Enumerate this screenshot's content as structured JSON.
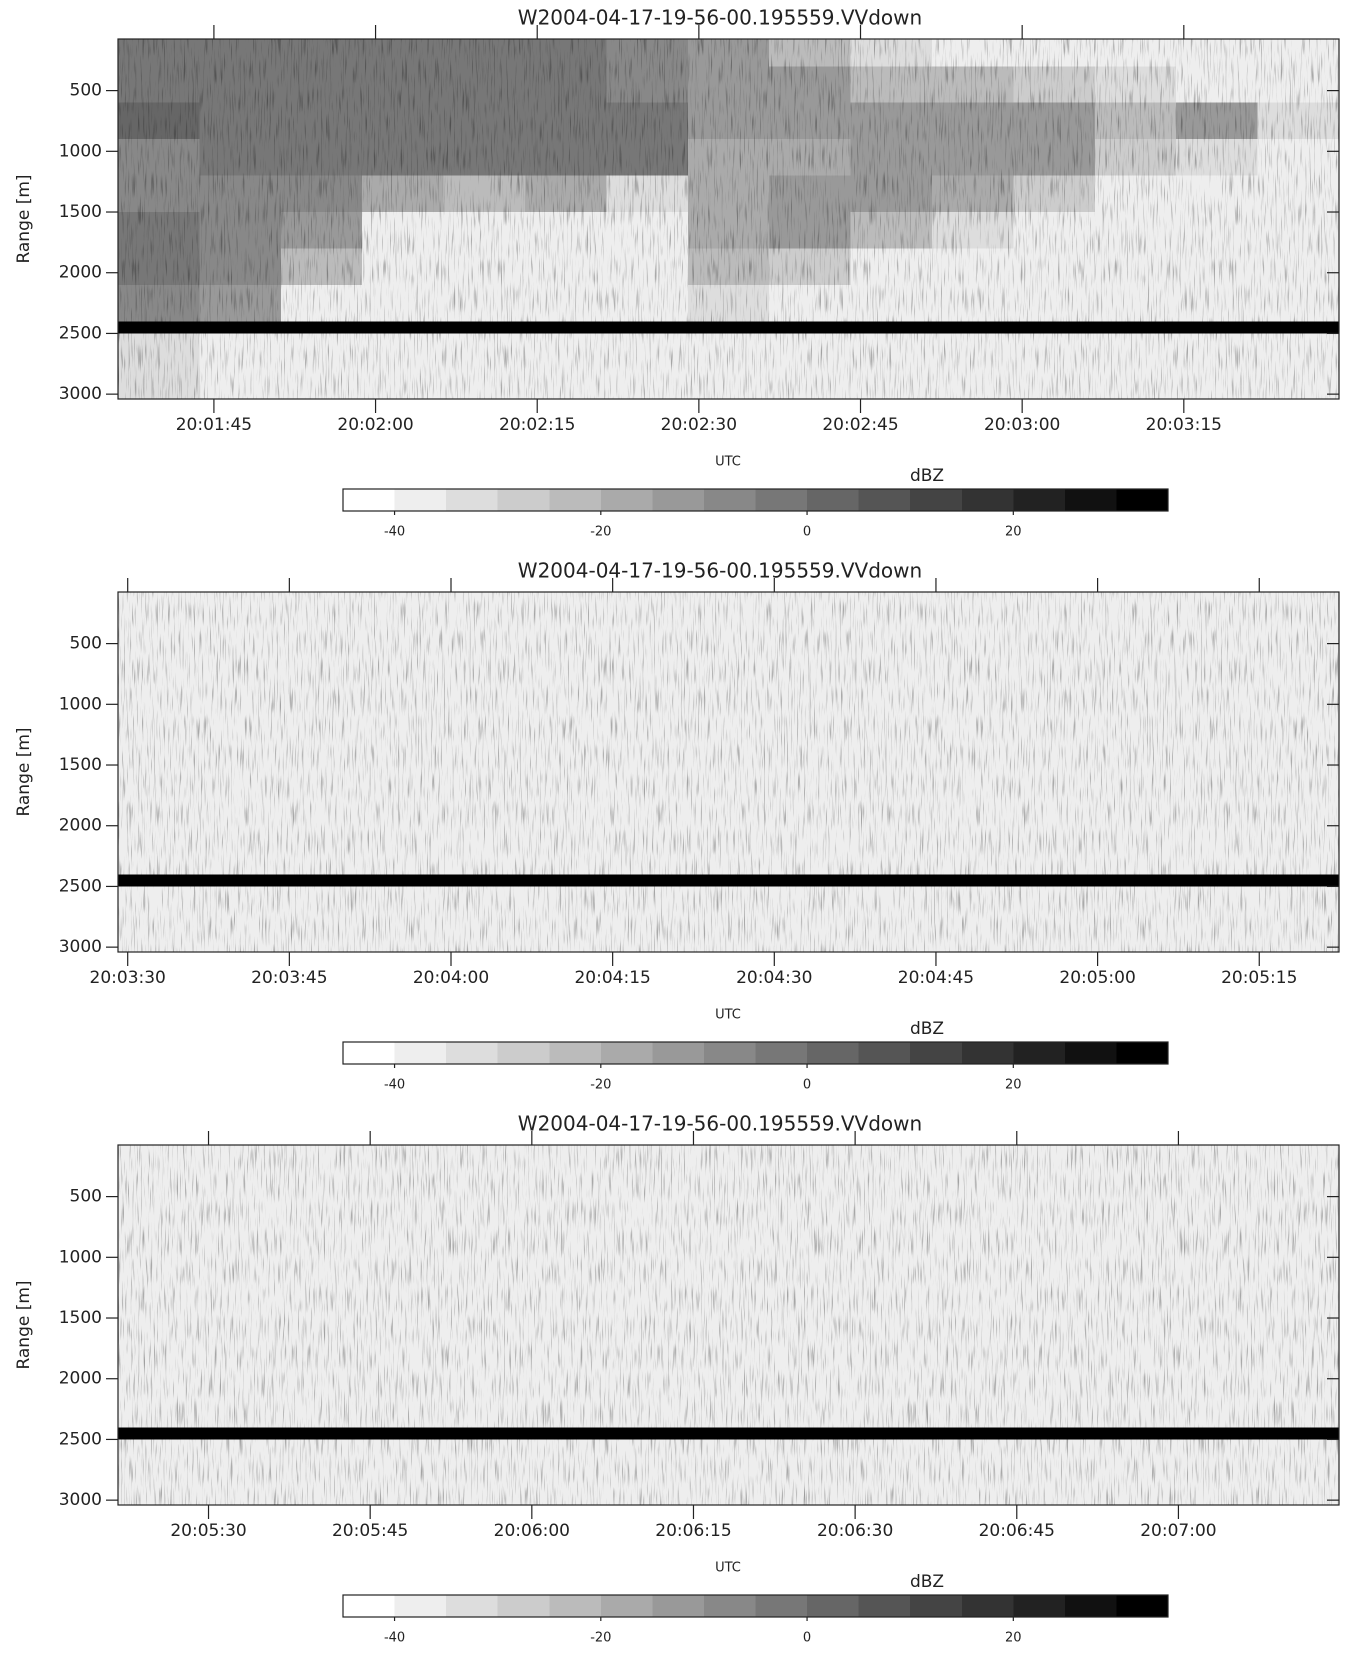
{
  "chart_data": [
    {
      "type": "heatmap",
      "title": "W2004-04-17-19-56-00.195559.VVdown",
      "xlabel": "UTC",
      "ylabel": "Range [m]",
      "xlim": [
        72096.1,
        72209.4
      ],
      "xticks": [
        {
          "value": 72105,
          "label": "20:01:45"
        },
        {
          "value": 72120,
          "label": "20:02:00"
        },
        {
          "value": 72135,
          "label": "20:02:15"
        },
        {
          "value": 72150,
          "label": "20:02:30"
        },
        {
          "value": 72165,
          "label": "20:02:45"
        },
        {
          "value": 72180,
          "label": "20:03:00"
        },
        {
          "value": 72195,
          "label": "20:03:15"
        }
      ],
      "ylim": [
        75,
        3040
      ],
      "y_inverted": true,
      "yticks": [
        500,
        1000,
        1500,
        2000,
        2500,
        3000
      ],
      "y_edges": [
        75,
        300,
        600,
        900,
        1200,
        1500,
        1800,
        2100,
        2400,
        2500,
        3040
      ],
      "z": [
        [
          -3,
          -3,
          -3,
          -3,
          -4,
          -5,
          -8,
          -12,
          -25,
          -35,
          -40,
          -40,
          -40,
          -40,
          -40
        ],
        [
          -3,
          -3,
          -3,
          -4,
          -4,
          -5,
          -10,
          -15,
          -15,
          -25,
          -25,
          -30,
          -35,
          -40,
          -40
        ],
        [
          0,
          -2,
          -3,
          -2,
          -3,
          -3,
          -5,
          -15,
          -12,
          -15,
          -15,
          -15,
          -25,
          -15,
          -35
        ],
        [
          -10,
          -5,
          -5,
          -5,
          -5,
          -2,
          -5,
          -20,
          -20,
          -12,
          -15,
          -15,
          -30,
          -35,
          -40
        ],
        [
          -8,
          -8,
          -10,
          -20,
          -25,
          -20,
          -35,
          -20,
          -15,
          -15,
          -20,
          -30,
          -40,
          -40,
          -40
        ],
        [
          -5,
          -8,
          -12,
          -40,
          -40,
          -40,
          -40,
          -18,
          -15,
          -25,
          -35,
          -40,
          -40,
          -40,
          -40
        ],
        [
          -5,
          -10,
          -25,
          -40,
          -40,
          -40,
          -40,
          -25,
          -30,
          -40,
          -40,
          -40,
          -40,
          -40,
          -40
        ],
        [
          -8,
          -15,
          -38,
          -40,
          -40,
          -40,
          -40,
          -35,
          -40,
          -40,
          -40,
          -40,
          -40,
          -40,
          -40
        ],
        [
          30,
          30,
          30,
          30,
          30,
          30,
          30,
          30,
          30,
          30,
          30,
          30,
          30,
          30,
          30
        ],
        [
          -33,
          -36,
          -36,
          -36,
          -36,
          -36,
          -36,
          -36,
          -36,
          -36,
          -36,
          -36,
          -36,
          -36,
          -36
        ]
      ],
      "colormap": [
        "#ffffff",
        "#000000"
      ],
      "colorbar": {
        "label": "dBZ",
        "range": [
          -45,
          35
        ],
        "ticks": [
          -40,
          -20,
          0,
          20
        ],
        "steps": 16
      }
    },
    {
      "type": "heatmap",
      "title": "W2004-04-17-19-56-00.195559.VVdown",
      "xlabel": "UTC",
      "ylabel": "Range [m]",
      "xlim": [
        72209.1,
        72322.4
      ],
      "xticks": [
        {
          "value": 72210,
          "label": "20:03:30"
        },
        {
          "value": 72225,
          "label": "20:03:45"
        },
        {
          "value": 72240,
          "label": "20:04:00"
        },
        {
          "value": 72255,
          "label": "20:04:15"
        },
        {
          "value": 72270,
          "label": "20:04:30"
        },
        {
          "value": 72285,
          "label": "20:04:45"
        },
        {
          "value": 72300,
          "label": "20:05:00"
        },
        {
          "value": 72315,
          "label": "20:05:15"
        }
      ],
      "ylim": [
        75,
        3040
      ],
      "y_inverted": true,
      "yticks": [
        500,
        1000,
        1500,
        2000,
        2500,
        3000
      ],
      "y_edges": [
        75,
        300,
        600,
        900,
        1200,
        1500,
        1800,
        2100,
        2400,
        2500,
        3040
      ],
      "z": [
        [
          -40
        ],
        [
          -40
        ],
        [
          -40
        ],
        [
          -40
        ],
        [
          -40
        ],
        [
          -40
        ],
        [
          -40
        ],
        [
          -40
        ],
        [
          30
        ],
        [
          -36
        ]
      ],
      "colormap": [
        "#ffffff",
        "#000000"
      ],
      "colorbar": {
        "label": "dBZ",
        "range": [
          -45,
          35
        ],
        "ticks": [
          -40,
          -20,
          0,
          20
        ],
        "steps": 16
      }
    },
    {
      "type": "heatmap",
      "title": "W2004-04-17-19-56-00.195559.VVdown",
      "xlabel": "UTC",
      "ylabel": "Range [m]",
      "xlim": [
        72321.6,
        72434.9
      ],
      "xticks": [
        {
          "value": 72330,
          "label": "20:05:30"
        },
        {
          "value": 72345,
          "label": "20:05:45"
        },
        {
          "value": 72360,
          "label": "20:06:00"
        },
        {
          "value": 72375,
          "label": "20:06:15"
        },
        {
          "value": 72390,
          "label": "20:06:30"
        },
        {
          "value": 72405,
          "label": "20:06:45"
        },
        {
          "value": 72420,
          "label": "20:07:00"
        }
      ],
      "ylim": [
        75,
        3040
      ],
      "y_inverted": true,
      "yticks": [
        500,
        1000,
        1500,
        2000,
        2500,
        3000
      ],
      "y_edges": [
        75,
        300,
        600,
        900,
        1200,
        1500,
        1800,
        2100,
        2400,
        2500,
        3040
      ],
      "z": [
        [
          -40
        ],
        [
          -40
        ],
        [
          -40
        ],
        [
          -40
        ],
        [
          -40
        ],
        [
          -40
        ],
        [
          -40
        ],
        [
          -40
        ],
        [
          30
        ],
        [
          -36
        ]
      ],
      "colormap": [
        "#ffffff",
        "#000000"
      ],
      "colorbar": {
        "label": "dBZ",
        "range": [
          -45,
          35
        ],
        "ticks": [
          -40,
          -20,
          0,
          20
        ],
        "steps": 16
      }
    }
  ]
}
